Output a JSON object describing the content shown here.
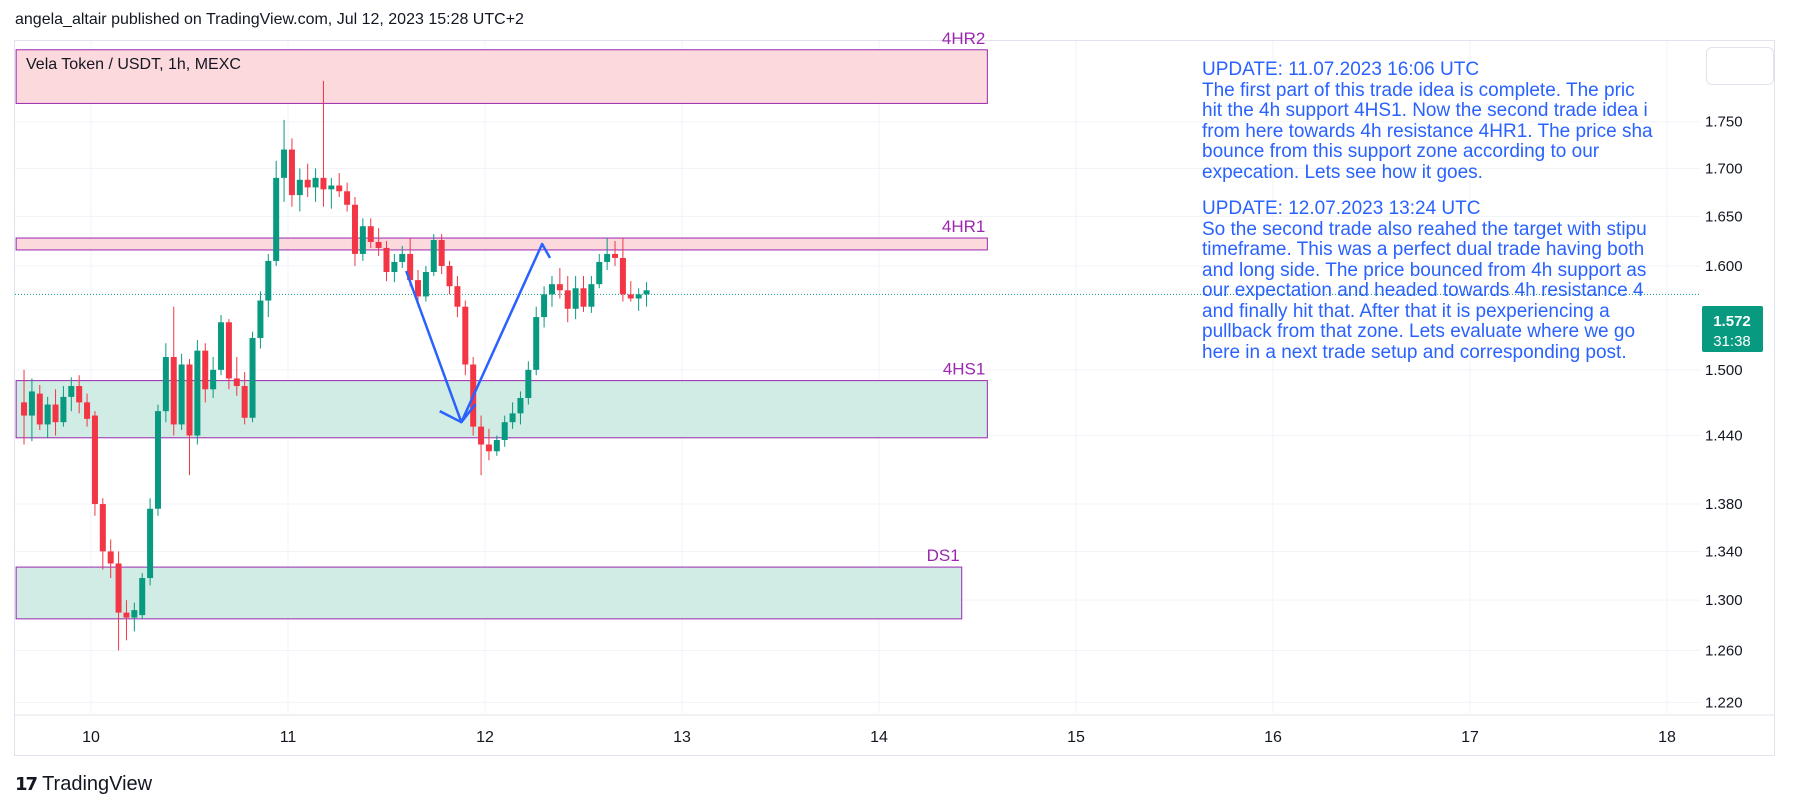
{
  "publisher_line": "angela_altair published on TradingView.com, Jul 12, 2023 15:28 UTC+2",
  "branding": {
    "logo_text": "TradingView",
    "logo_mark": "17"
  },
  "colors": {
    "up": "#089981",
    "down": "#f23645",
    "arrow": "#2962ff",
    "resistance_fill": "#fcd9dc",
    "support_fill": "#d0ece4",
    "zone_border": "#9c27b0",
    "note_text": "#2962ff",
    "price_badge": "#089981",
    "grid": "#f0f3fa",
    "axis_text": "#131722"
  },
  "notes": [
    {
      "header": "UPDATE: 11.07.2023 16:06 UTC",
      "lines": [
        "The first part of this trade idea is complete. The pric",
        "hit the 4h support 4HS1. Now the second trade idea i",
        "from here towards 4h resistance 4HR1. The price sha",
        "bounce from this support zone according to our",
        "expecation. Lets see how it goes."
      ]
    },
    {
      "header": "UPDATE: 12.07.2023 13:24 UTC",
      "lines": [
        "So the second trade also reahed the target with stipu",
        "timeframe. This was a perfect dual trade having both",
        "and long side. The price bounced from 4h support as",
        "our expectation  and headed towards 4h resistance 4",
        "and finally hit that. After that it is pexperiencing a",
        "pullback from that zone. Lets evaluate where we go",
        "here in a next trade setup and corresponding post."
      ]
    }
  ],
  "chart_data": {
    "type": "candlestick",
    "title": "Vela Token / USDT, 1h, MEXC",
    "symbol": "Vela Token / USDT",
    "interval": "1h",
    "exchange": "MEXC",
    "current_price": "1.572",
    "countdown": "31:38",
    "x_range": [
      9.62,
      18.0
    ],
    "ylim": [
      1.212,
      1.84
    ],
    "x_ticks": [
      {
        "value": 10,
        "label": "10"
      },
      {
        "value": 11,
        "label": "11"
      },
      {
        "value": 12,
        "label": "12"
      },
      {
        "value": 13,
        "label": "13"
      },
      {
        "value": 14,
        "label": "14"
      },
      {
        "value": 15,
        "label": "15"
      },
      {
        "value": 16,
        "label": "16"
      },
      {
        "value": 17,
        "label": "17"
      },
      {
        "value": 18,
        "label": "18"
      }
    ],
    "y_ticks": [
      {
        "value": 1.75,
        "label": "1.750"
      },
      {
        "value": 1.7,
        "label": "1.700"
      },
      {
        "value": 1.65,
        "label": "1.650"
      },
      {
        "value": 1.6,
        "label": "1.600"
      },
      {
        "value": 1.5,
        "label": "1.500"
      },
      {
        "value": 1.44,
        "label": "1.440"
      },
      {
        "value": 1.38,
        "label": "1.380"
      },
      {
        "value": 1.34,
        "label": "1.340"
      },
      {
        "value": 1.3,
        "label": "1.300"
      },
      {
        "value": 1.26,
        "label": "1.260"
      },
      {
        "value": 1.22,
        "label": "1.220"
      }
    ],
    "zones": [
      {
        "name": "4HR2",
        "type": "resistance",
        "x_start": 9.62,
        "x_end": 14.55,
        "low": 1.77,
        "high": 1.83
      },
      {
        "name": "4HR1",
        "type": "resistance",
        "x_start": 9.62,
        "x_end": 14.55,
        "low": 1.616,
        "high": 1.628
      },
      {
        "name": "4HS1",
        "type": "support",
        "x_start": 9.62,
        "x_end": 14.55,
        "low": 1.438,
        "high": 1.49
      },
      {
        "name": "DS1",
        "type": "support",
        "x_start": 9.62,
        "x_end": 14.42,
        "low": 1.285,
        "high": 1.327
      }
    ],
    "arrow_path": [
      {
        "x": 11.6,
        "y": 1.595
      },
      {
        "x": 11.88,
        "y": 1.452
      },
      {
        "x": 12.29,
        "y": 1.622
      },
      {
        "x": 12.33,
        "y": 1.608
      }
    ],
    "arrow_start_tail": {
      "x": 11.77,
      "y": 1.462
    },
    "candles": [
      {
        "t": 9.62,
        "o": 1.56,
        "h": 1.57,
        "l": 1.41,
        "c": 1.47
      },
      {
        "t": 9.66,
        "o": 1.47,
        "h": 1.5,
        "l": 1.432,
        "c": 1.458
      },
      {
        "t": 9.7,
        "o": 1.458,
        "h": 1.492,
        "l": 1.435,
        "c": 1.48
      },
      {
        "t": 9.74,
        "o": 1.478,
        "h": 1.486,
        "l": 1.445,
        "c": 1.45
      },
      {
        "t": 9.78,
        "o": 1.45,
        "h": 1.475,
        "l": 1.438,
        "c": 1.468
      },
      {
        "t": 9.82,
        "o": 1.468,
        "h": 1.482,
        "l": 1.44,
        "c": 1.452
      },
      {
        "t": 9.86,
        "o": 1.452,
        "h": 1.485,
        "l": 1.448,
        "c": 1.475
      },
      {
        "t": 9.9,
        "o": 1.475,
        "h": 1.493,
        "l": 1.462,
        "c": 1.485
      },
      {
        "t": 9.94,
        "o": 1.485,
        "h": 1.495,
        "l": 1.46,
        "c": 1.47
      },
      {
        "t": 9.98,
        "o": 1.47,
        "h": 1.478,
        "l": 1.448,
        "c": 1.455
      },
      {
        "t": 10.02,
        "o": 1.458,
        "h": 1.462,
        "l": 1.37,
        "c": 1.38
      },
      {
        "t": 10.06,
        "o": 1.38,
        "h": 1.385,
        "l": 1.325,
        "c": 1.34
      },
      {
        "t": 10.1,
        "o": 1.34,
        "h": 1.35,
        "l": 1.318,
        "c": 1.33
      },
      {
        "t": 10.14,
        "o": 1.33,
        "h": 1.34,
        "l": 1.26,
        "c": 1.29
      },
      {
        "t": 10.18,
        "o": 1.29,
        "h": 1.3,
        "l": 1.268,
        "c": 1.286
      },
      {
        "t": 10.22,
        "o": 1.286,
        "h": 1.298,
        "l": 1.275,
        "c": 1.292
      },
      {
        "t": 10.26,
        "o": 1.288,
        "h": 1.322,
        "l": 1.285,
        "c": 1.318
      },
      {
        "t": 10.3,
        "o": 1.318,
        "h": 1.385,
        "l": 1.312,
        "c": 1.376
      },
      {
        "t": 10.34,
        "o": 1.376,
        "h": 1.468,
        "l": 1.37,
        "c": 1.462
      },
      {
        "t": 10.38,
        "o": 1.462,
        "h": 1.525,
        "l": 1.452,
        "c": 1.512
      },
      {
        "t": 10.42,
        "o": 1.512,
        "h": 1.56,
        "l": 1.44,
        "c": 1.45
      },
      {
        "t": 10.46,
        "o": 1.45,
        "h": 1.515,
        "l": 1.445,
        "c": 1.505
      },
      {
        "t": 10.5,
        "o": 1.505,
        "h": 1.51,
        "l": 1.405,
        "c": 1.44
      },
      {
        "t": 10.54,
        "o": 1.44,
        "h": 1.528,
        "l": 1.432,
        "c": 1.518
      },
      {
        "t": 10.58,
        "o": 1.518,
        "h": 1.525,
        "l": 1.47,
        "c": 1.482
      },
      {
        "t": 10.62,
        "o": 1.482,
        "h": 1.512,
        "l": 1.474,
        "c": 1.5
      },
      {
        "t": 10.66,
        "o": 1.5,
        "h": 1.552,
        "l": 1.495,
        "c": 1.545
      },
      {
        "t": 10.7,
        "o": 1.545,
        "h": 1.548,
        "l": 1.482,
        "c": 1.492
      },
      {
        "t": 10.74,
        "o": 1.492,
        "h": 1.512,
        "l": 1.476,
        "c": 1.485
      },
      {
        "t": 10.78,
        "o": 1.485,
        "h": 1.498,
        "l": 1.45,
        "c": 1.456
      },
      {
        "t": 10.82,
        "o": 1.456,
        "h": 1.536,
        "l": 1.452,
        "c": 1.53
      },
      {
        "t": 10.86,
        "o": 1.53,
        "h": 1.575,
        "l": 1.52,
        "c": 1.566
      },
      {
        "t": 10.9,
        "o": 1.566,
        "h": 1.612,
        "l": 1.55,
        "c": 1.605
      },
      {
        "t": 10.94,
        "o": 1.605,
        "h": 1.708,
        "l": 1.6,
        "c": 1.69
      },
      {
        "t": 10.98,
        "o": 1.69,
        "h": 1.752,
        "l": 1.665,
        "c": 1.72
      },
      {
        "t": 11.02,
        "o": 1.72,
        "h": 1.732,
        "l": 1.66,
        "c": 1.672
      },
      {
        "t": 11.06,
        "o": 1.672,
        "h": 1.7,
        "l": 1.655,
        "c": 1.688
      },
      {
        "t": 11.1,
        "o": 1.688,
        "h": 1.705,
        "l": 1.67,
        "c": 1.68
      },
      {
        "t": 11.14,
        "o": 1.68,
        "h": 1.7,
        "l": 1.665,
        "c": 1.69
      },
      {
        "t": 11.18,
        "o": 1.69,
        "h": 1.795,
        "l": 1.66,
        "c": 1.678
      },
      {
        "t": 11.22,
        "o": 1.678,
        "h": 1.69,
        "l": 1.658,
        "c": 1.682
      },
      {
        "t": 11.26,
        "o": 1.682,
        "h": 1.695,
        "l": 1.67,
        "c": 1.676
      },
      {
        "t": 11.3,
        "o": 1.676,
        "h": 1.685,
        "l": 1.655,
        "c": 1.662
      },
      {
        "t": 11.34,
        "o": 1.662,
        "h": 1.67,
        "l": 1.6,
        "c": 1.612
      },
      {
        "t": 11.38,
        "o": 1.612,
        "h": 1.648,
        "l": 1.605,
        "c": 1.64
      },
      {
        "t": 11.42,
        "o": 1.64,
        "h": 1.648,
        "l": 1.618,
        "c": 1.624
      },
      {
        "t": 11.46,
        "o": 1.624,
        "h": 1.638,
        "l": 1.61,
        "c": 1.618
      },
      {
        "t": 11.5,
        "o": 1.618,
        "h": 1.625,
        "l": 1.585,
        "c": 1.594
      },
      {
        "t": 11.54,
        "o": 1.594,
        "h": 1.612,
        "l": 1.584,
        "c": 1.604
      },
      {
        "t": 11.58,
        "o": 1.604,
        "h": 1.62,
        "l": 1.598,
        "c": 1.612
      },
      {
        "t": 11.62,
        "o": 1.612,
        "h": 1.628,
        "l": 1.58,
        "c": 1.586
      },
      {
        "t": 11.66,
        "o": 1.586,
        "h": 1.596,
        "l": 1.56,
        "c": 1.57
      },
      {
        "t": 11.7,
        "o": 1.57,
        "h": 1.6,
        "l": 1.565,
        "c": 1.594
      },
      {
        "t": 11.74,
        "o": 1.594,
        "h": 1.632,
        "l": 1.59,
        "c": 1.626
      },
      {
        "t": 11.78,
        "o": 1.626,
        "h": 1.632,
        "l": 1.592,
        "c": 1.6
      },
      {
        "t": 11.82,
        "o": 1.6,
        "h": 1.605,
        "l": 1.572,
        "c": 1.58
      },
      {
        "t": 11.86,
        "o": 1.58,
        "h": 1.59,
        "l": 1.55,
        "c": 1.56
      },
      {
        "t": 11.9,
        "o": 1.56,
        "h": 1.566,
        "l": 1.495,
        "c": 1.505
      },
      {
        "t": 11.94,
        "o": 1.505,
        "h": 1.512,
        "l": 1.44,
        "c": 1.448
      },
      {
        "t": 11.98,
        "o": 1.448,
        "h": 1.458,
        "l": 1.405,
        "c": 1.432
      },
      {
        "t": 12.02,
        "o": 1.432,
        "h": 1.446,
        "l": 1.418,
        "c": 1.426
      },
      {
        "t": 12.06,
        "o": 1.426,
        "h": 1.44,
        "l": 1.422,
        "c": 1.436
      },
      {
        "t": 12.1,
        "o": 1.436,
        "h": 1.458,
        "l": 1.43,
        "c": 1.452
      },
      {
        "t": 12.14,
        "o": 1.452,
        "h": 1.47,
        "l": 1.446,
        "c": 1.46
      },
      {
        "t": 12.18,
        "o": 1.46,
        "h": 1.48,
        "l": 1.45,
        "c": 1.474
      },
      {
        "t": 12.22,
        "o": 1.474,
        "h": 1.508,
        "l": 1.468,
        "c": 1.5
      },
      {
        "t": 12.26,
        "o": 1.5,
        "h": 1.56,
        "l": 1.495,
        "c": 1.55
      },
      {
        "t": 12.3,
        "o": 1.55,
        "h": 1.58,
        "l": 1.54,
        "c": 1.572
      },
      {
        "t": 12.34,
        "o": 1.572,
        "h": 1.59,
        "l": 1.56,
        "c": 1.582
      },
      {
        "t": 12.38,
        "o": 1.582,
        "h": 1.598,
        "l": 1.568,
        "c": 1.576
      },
      {
        "t": 12.42,
        "o": 1.576,
        "h": 1.59,
        "l": 1.545,
        "c": 1.558
      },
      {
        "t": 12.46,
        "o": 1.558,
        "h": 1.59,
        "l": 1.548,
        "c": 1.578
      },
      {
        "t": 12.5,
        "o": 1.578,
        "h": 1.59,
        "l": 1.555,
        "c": 1.56
      },
      {
        "t": 12.54,
        "o": 1.56,
        "h": 1.59,
        "l": 1.554,
        "c": 1.582
      },
      {
        "t": 12.58,
        "o": 1.582,
        "h": 1.612,
        "l": 1.578,
        "c": 1.604
      },
      {
        "t": 12.62,
        "o": 1.604,
        "h": 1.628,
        "l": 1.596,
        "c": 1.612
      },
      {
        "t": 12.66,
        "o": 1.612,
        "h": 1.625,
        "l": 1.6,
        "c": 1.608
      },
      {
        "t": 12.7,
        "o": 1.608,
        "h": 1.628,
        "l": 1.565,
        "c": 1.572
      },
      {
        "t": 12.74,
        "o": 1.572,
        "h": 1.585,
        "l": 1.565,
        "c": 1.568
      },
      {
        "t": 12.78,
        "o": 1.568,
        "h": 1.578,
        "l": 1.556,
        "c": 1.572
      },
      {
        "t": 12.82,
        "o": 1.572,
        "h": 1.584,
        "l": 1.56,
        "c": 1.576
      }
    ]
  }
}
